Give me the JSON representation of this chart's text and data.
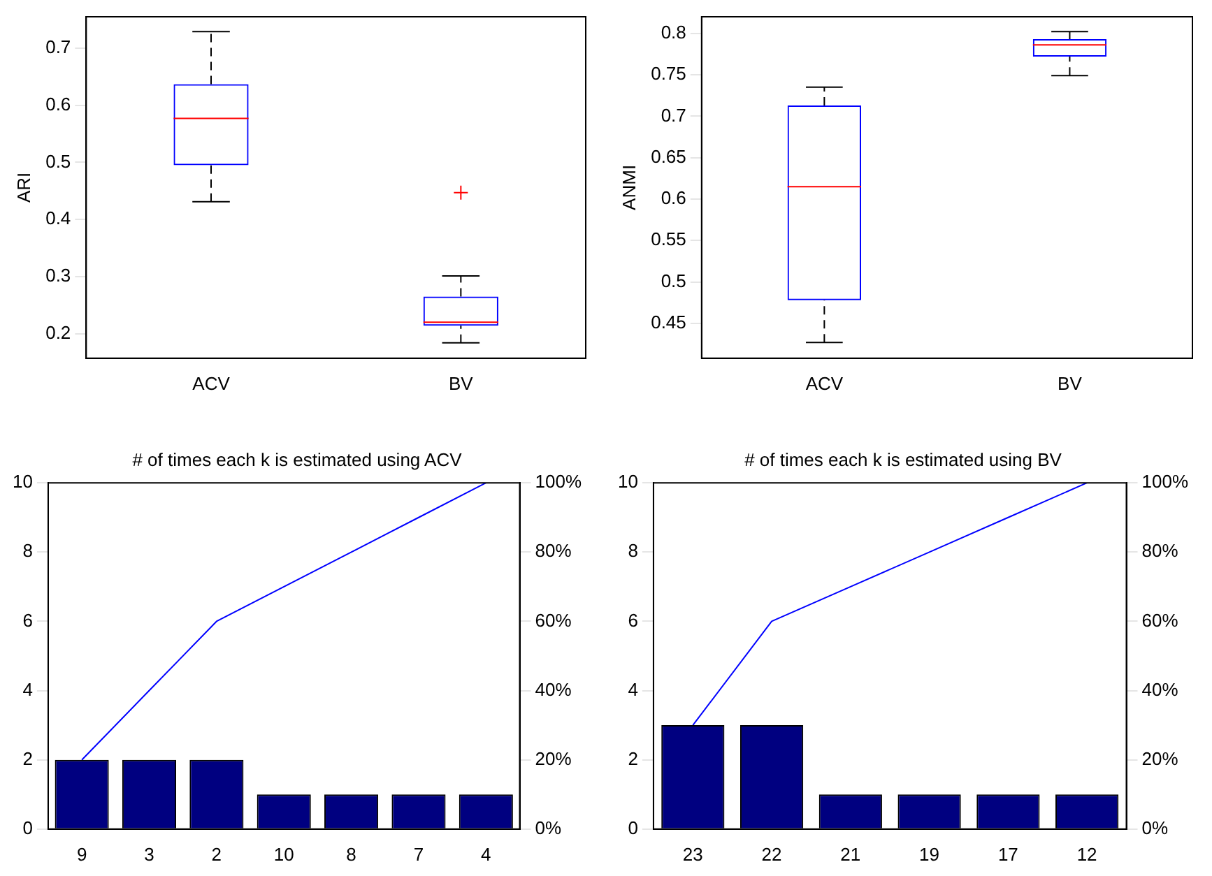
{
  "chart_data": [
    {
      "type": "box",
      "ylabel": "ARI",
      "categories": [
        "ACV",
        "BV"
      ],
      "ylim": [
        0.157,
        0.755
      ],
      "yticks": [
        0.2,
        0.3,
        0.4,
        0.5,
        0.6,
        0.7
      ],
      "grid": false,
      "legend": false,
      "boxes": [
        {
          "low": 0.431,
          "q1": 0.495,
          "median": 0.577,
          "q3": 0.637,
          "high": 0.729
        },
        {
          "low": 0.184,
          "q1": 0.214,
          "median": 0.22,
          "q3": 0.265,
          "high": 0.301,
          "outliers": [
            0.447
          ]
        }
      ]
    },
    {
      "type": "box",
      "ylabel": "ANMI",
      "categories": [
        "ACV",
        "BV"
      ],
      "ylim": [
        0.408,
        0.82
      ],
      "yticks": [
        0.45,
        0.5,
        0.55,
        0.6,
        0.65,
        0.7,
        0.75,
        0.8
      ],
      "grid": false,
      "legend": false,
      "boxes": [
        {
          "low": 0.427,
          "q1": 0.478,
          "median": 0.615,
          "q3": 0.713,
          "high": 0.735
        },
        {
          "low": 0.749,
          "q1": 0.772,
          "median": 0.786,
          "q3": 0.793,
          "high": 0.802
        }
      ]
    },
    {
      "type": "bar",
      "title": "# of times each k is estimated using ACV",
      "categories": [
        "9",
        "3",
        "2",
        "10",
        "8",
        "7",
        "4"
      ],
      "ylim": [
        0,
        10
      ],
      "yticks": [
        0,
        2,
        4,
        6,
        8,
        10
      ],
      "y2lim": [
        0,
        100
      ],
      "y2ticks": [
        {
          "value": 0,
          "label": "0%"
        },
        {
          "value": 20,
          "label": "20%"
        },
        {
          "value": 40,
          "label": "40%"
        },
        {
          "value": 60,
          "label": "60%"
        },
        {
          "value": 80,
          "label": "80%"
        },
        {
          "value": 100,
          "label": "100%"
        }
      ],
      "grid": false,
      "legend": false,
      "marker": "none",
      "series": [
        {
          "color": "#000080",
          "values": [
            2,
            2,
            2,
            1,
            1,
            1,
            1
          ]
        },
        {
          "type": "line",
          "axis": "y2",
          "color": "#0000ff",
          "values": [
            20,
            40,
            60,
            70,
            80,
            90,
            100
          ]
        }
      ]
    },
    {
      "type": "bar",
      "title": "# of times each k is estimated using BV",
      "categories": [
        "23",
        "22",
        "21",
        "19",
        "17",
        "12"
      ],
      "ylim": [
        0,
        10
      ],
      "yticks": [
        0,
        2,
        4,
        6,
        8,
        10
      ],
      "y2lim": [
        0,
        100
      ],
      "y2ticks": [
        {
          "value": 0,
          "label": "0%"
        },
        {
          "value": 20,
          "label": "20%"
        },
        {
          "value": 40,
          "label": "40%"
        },
        {
          "value": 60,
          "label": "60%"
        },
        {
          "value": 80,
          "label": "80%"
        },
        {
          "value": 100,
          "label": "100%"
        }
      ],
      "grid": false,
      "legend": false,
      "marker": "none",
      "series": [
        {
          "color": "#000080",
          "values": [
            3,
            3,
            1,
            1,
            1,
            1
          ]
        },
        {
          "type": "line",
          "axis": "y2",
          "color": "#0000ff",
          "values": [
            30,
            60,
            70,
            80,
            90,
            100
          ]
        }
      ]
    }
  ]
}
